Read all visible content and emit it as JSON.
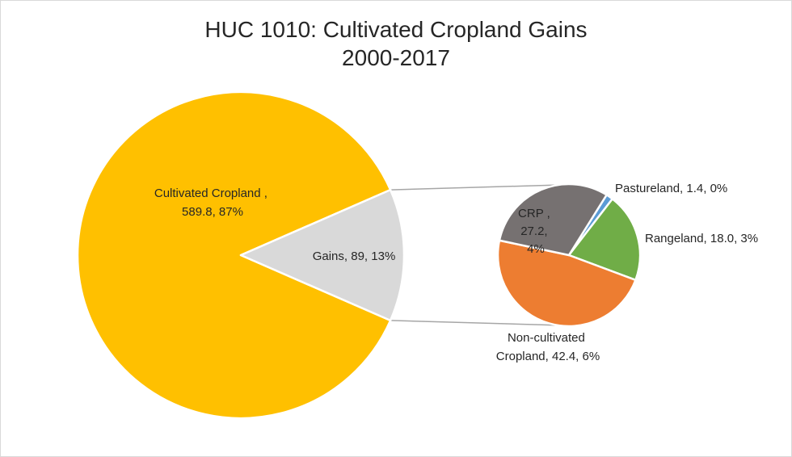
{
  "chart_data": {
    "type": "pie",
    "subtype": "bar-of-pie",
    "title": [
      "HUC 1010: Cultivated Cropland Gains",
      "2000-2017"
    ],
    "main_pie": [
      {
        "label": "Cultivated Cropland ,",
        "value_label": "589.8, 87%",
        "value": 589.8,
        "percent": 87,
        "color": "#FFC000"
      },
      {
        "label": "Gains, 89, 13%",
        "value": 89,
        "percent": 13,
        "color": "#D9D9D9"
      }
    ],
    "secondary_pie": [
      {
        "label": "Pastureland, 1.4, 0%",
        "value": 1.4,
        "percent": 0,
        "color": "#5B9BD5"
      },
      {
        "label": "Rangeland, 18.0, 3%",
        "value": 18.0,
        "percent": 3,
        "color": "#70AD47"
      },
      {
        "lines": [
          "Non-cultivated",
          "Cropland, 42.4, 6%"
        ],
        "value": 42.4,
        "percent": 6,
        "color": "#ED7D31"
      },
      {
        "lines": [
          "CRP ,",
          "27.2,",
          "4%"
        ],
        "value": 27.2,
        "percent": 4,
        "color": "#767171"
      }
    ]
  }
}
